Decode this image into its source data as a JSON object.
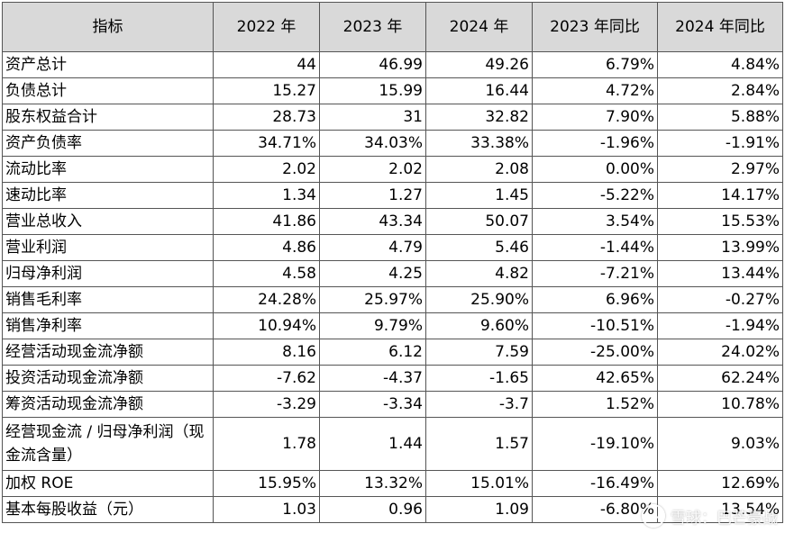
{
  "table": {
    "headers": [
      "指标",
      "2022 年",
      "2023 年",
      "2024 年",
      "2023 年同比",
      "2024 年同比"
    ],
    "rows": [
      [
        "资产总计",
        "44",
        "46.99",
        "49.26",
        "6.79%",
        "4.84%"
      ],
      [
        "负债总计",
        "15.27",
        "15.99",
        "16.44",
        "4.72%",
        "2.84%"
      ],
      [
        "股东权益合计",
        "28.73",
        "31",
        "32.82",
        "7.90%",
        "5.88%"
      ],
      [
        "资产负债率",
        "34.71%",
        "34.03%",
        "33.38%",
        "-1.96%",
        "-1.91%"
      ],
      [
        "流动比率",
        "2.02",
        "2.02",
        "2.08",
        "0.00%",
        "2.97%"
      ],
      [
        "速动比率",
        "1.34",
        "1.27",
        "1.45",
        "-5.22%",
        "14.17%"
      ],
      [
        "营业总收入",
        "41.86",
        "43.34",
        "50.07",
        "3.54%",
        "15.53%"
      ],
      [
        "营业利润",
        "4.86",
        "4.79",
        "5.46",
        "-1.44%",
        "13.99%"
      ],
      [
        "归母净利润",
        "4.58",
        "4.25",
        "4.82",
        "-7.21%",
        "13.44%"
      ],
      [
        "销售毛利率",
        "24.28%",
        "25.97%",
        "25.90%",
        "6.96%",
        "-0.27%"
      ],
      [
        "销售净利率",
        "10.94%",
        "9.79%",
        "9.60%",
        "-10.51%",
        "-1.94%"
      ],
      [
        "经营活动现金流净额",
        "8.16",
        "6.12",
        "7.59",
        "-25.00%",
        "24.02%"
      ],
      [
        "投资活动现金流净额",
        "-7.62",
        "-4.37",
        "-1.65",
        "42.65%",
        "62.24%"
      ],
      [
        "筹资活动现金流净额",
        "-3.29",
        "-3.34",
        "-3.7",
        "1.52%",
        "10.78%"
      ],
      [
        "经营现金流 / 归母净利润（现金流含量）",
        "1.78",
        "1.44",
        "1.57",
        "-19.10%",
        "9.03%"
      ],
      [
        "加权 ROE",
        "15.95%",
        "13.32%",
        "15.01%",
        "-16.49%",
        "12.69%"
      ],
      [
        "基本每股收益（元）",
        "1.03",
        "0.96",
        "1.09",
        "-6.80%",
        "13.54%"
      ]
    ]
  },
  "watermark": {
    "text": "雪球：巴芒豪战",
    "icon": "snowball-logo-icon"
  }
}
